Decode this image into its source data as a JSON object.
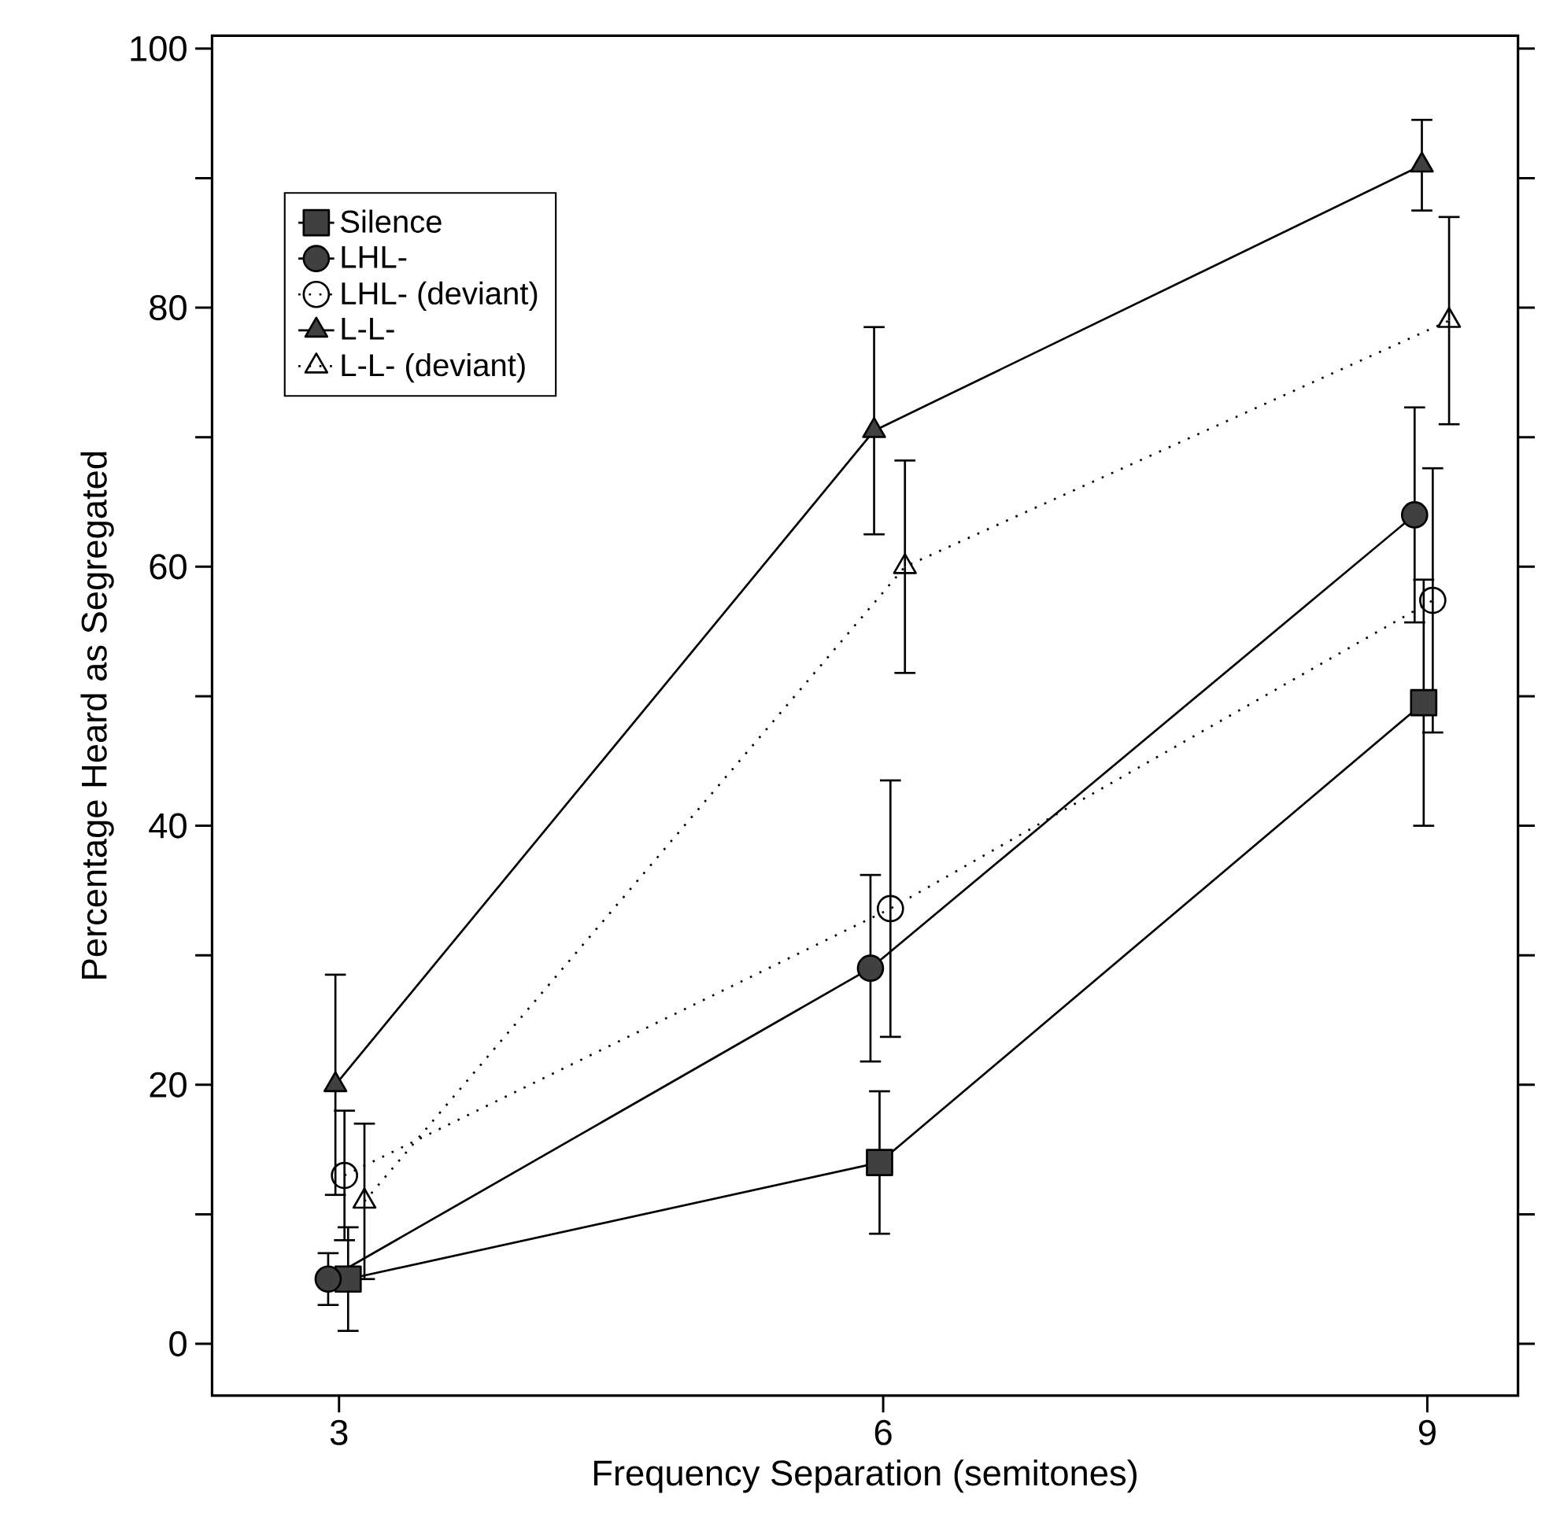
{
  "chart_data": {
    "type": "line",
    "xlabel": "Frequency Separation (semitones)",
    "ylabel": "Percentage Heard as Segregated",
    "xlim": [
      2.3,
      9.5
    ],
    "xticks": [
      3,
      6,
      9
    ],
    "ylim": [
      -4,
      101
    ],
    "yticks": [
      0,
      {
        "value": 10,
        "label": null
      },
      20,
      {
        "value": 30,
        "label": null
      },
      40,
      {
        "value": 50,
        "label": null
      },
      60,
      {
        "value": 70,
        "label": null
      },
      80,
      {
        "value": 90,
        "label": null
      },
      100
    ],
    "legend": "top left",
    "grid": false,
    "series": [
      {
        "name": "Silence",
        "color": "#000000",
        "marker": "square",
        "line_style": "solid",
        "x": [
          3.05,
          5.98,
          8.98
        ],
        "values": [
          5,
          14,
          49.5
        ],
        "errors": [
          4,
          5.5,
          9.5
        ]
      },
      {
        "name": "LHL-",
        "color": "#000000",
        "marker": "circle",
        "line_style": "solid",
        "x": [
          2.94,
          5.93,
          8.93
        ],
        "values": [
          5,
          29,
          64
        ],
        "errors": [
          2,
          7.2,
          8.3
        ]
      },
      {
        "name": "LHL- (deviant)",
        "color": "#000000",
        "marker": "circle",
        "line_style": "dotted",
        "x": [
          3.03,
          6.04,
          9.03
        ],
        "values": [
          13,
          33.6,
          57.4
        ],
        "errors": [
          5,
          9.9,
          10.2
        ]
      },
      {
        "name": "L-L-",
        "color": "#000000",
        "marker": "triangle",
        "line_style": "solid",
        "x": [
          2.98,
          5.95,
          8.97
        ],
        "values": [
          20,
          70.5,
          91
        ],
        "errors": [
          8.5,
          8,
          3.5
        ]
      },
      {
        "name": "L-L- (deviant)",
        "color": "#000000",
        "marker": "triangle",
        "line_style": "dotted",
        "x": [
          3.14,
          6.12,
          9.12
        ],
        "values": [
          11,
          60,
          79
        ],
        "errors": [
          6,
          8.2,
          8
        ]
      }
    ]
  }
}
